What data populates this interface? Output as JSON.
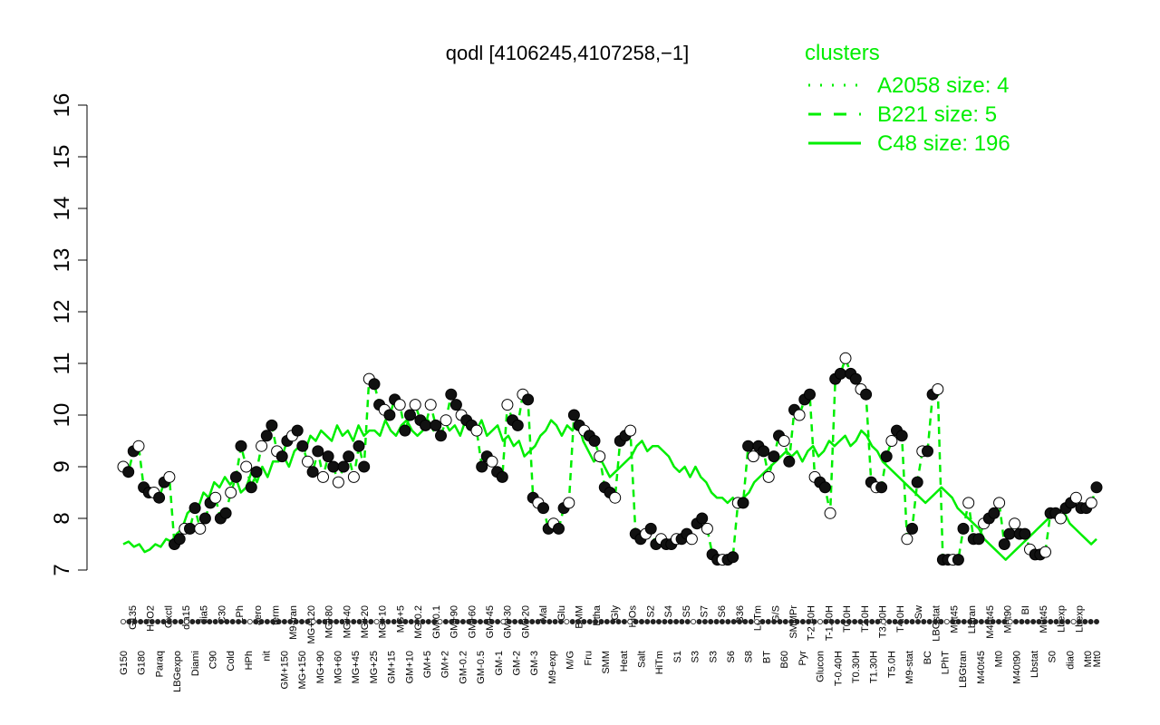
{
  "chart_data": {
    "type": "line",
    "title": "qodl [4106245,4107258,−1]",
    "xlabel": "",
    "ylabel": "",
    "ylim": [
      7,
      16
    ],
    "yticks": [
      7,
      8,
      9,
      10,
      11,
      12,
      13,
      14,
      15,
      16
    ],
    "grid": false,
    "legend": {
      "title": "clusters",
      "placement": "top-right",
      "color": "#00ee00",
      "entries": [
        {
          "label": "A2058 size: 4",
          "style": "dotted"
        },
        {
          "label": "B221 size: 5",
          "style": "dashed"
        },
        {
          "label": "C48 size: 196",
          "style": "solid"
        }
      ]
    },
    "xtick_labels_bottom": [
      "G150",
      "G180",
      "Paraq",
      "LBGexpo",
      "Diami",
      "C90",
      "Cold",
      "HPh",
      "nit",
      "GM+150",
      "MG+150",
      "MG+90",
      "MG+60",
      "MG+45",
      "MG+25",
      "GM+15",
      "GM+10",
      "GM+5",
      "GM+2",
      "GM-0.2",
      "GM-0.5",
      "GM-1",
      "GM-2",
      "GM-3",
      "M9-exp",
      "M/G",
      "Fru",
      "SMM",
      "Heat",
      "Salt",
      "HiTm",
      "S1",
      "S3",
      "S3",
      "S6",
      "S8",
      "BT",
      "B60",
      "Pyr",
      "Glucon",
      "T-0.40H",
      "T0.30H",
      "T1.30H",
      "T5.0H",
      "M9-stat",
      "BC",
      "LPhT",
      "LBGtran",
      "M40t45",
      "Mt0",
      "M40t90",
      "Lbstat",
      "S0",
      "dia0",
      "Mt0",
      "Mt0"
    ],
    "xtick_labels_top": [
      "G135",
      "H2O2",
      "Oxctl",
      "dia15",
      "dia5",
      "C30",
      "LPh",
      "aero",
      "ferm",
      "M9-tran",
      "MG+120",
      "MG+80",
      "MG+40",
      "MG+20",
      "MG+10",
      "MG+5",
      "MG-0.2",
      "GM-0.1",
      "GM+90",
      "GM+60",
      "GM+45",
      "GM+30",
      "GM+20",
      "Mal",
      "Glu",
      "BMM",
      "Etha",
      "Gly",
      "HiOs",
      "S2",
      "S4",
      "S5",
      "S7",
      "S6",
      "B36",
      "LoTm",
      "G/S",
      "SMMPr",
      "T-2.40H",
      "T-1.40H",
      "T0.0H",
      "T2.0H",
      "T3.30H",
      "T4.0H",
      "Sw",
      "LBGstat",
      "M0t45",
      "Lbtran",
      "M40t45",
      "M0t90",
      "BI",
      "M0t45",
      "Lbexp",
      "Lbexp"
    ],
    "series": [
      {
        "name": "C48 size: 196",
        "style": "solid",
        "values": [
          7.5,
          7.55,
          7.45,
          7.5,
          7.35,
          7.4,
          7.5,
          7.45,
          7.6,
          7.55,
          7.7,
          7.8,
          8.1,
          8.2,
          8.2,
          8.5,
          8.4,
          8.7,
          8.6,
          8.8,
          8.65,
          8.8,
          8.5,
          8.6,
          8.9,
          8.7,
          9.0,
          8.8,
          9.1,
          9.1,
          9.2,
          9.0,
          9.3,
          9.4,
          9.3,
          9.6,
          9.5,
          9.7,
          9.6,
          9.5,
          9.8,
          9.6,
          9.7,
          9.5,
          9.8,
          9.6,
          9.7,
          9.7,
          9.6,
          9.9,
          9.7,
          9.6,
          9.8,
          9.9,
          9.7,
          9.6,
          9.7,
          9.9,
          9.7,
          9.8,
          9.9,
          9.7,
          9.8,
          9.6,
          9.9,
          9.8,
          9.7,
          9.9,
          9.6,
          9.7,
          9.8,
          9.5,
          9.6,
          9.4,
          9.5,
          9.2,
          9.3,
          9.4,
          9.6,
          9.7,
          9.9,
          9.8,
          9.6,
          9.8,
          9.7,
          9.9,
          9.5,
          9.3,
          9.1,
          9.2,
          9.0,
          8.8,
          8.9,
          9.0,
          9.1,
          9.2,
          9.4,
          9.5,
          9.3,
          9.4,
          9.4,
          9.3,
          9.2,
          9.0,
          8.9,
          9.0,
          8.8,
          9.0,
          8.8,
          8.7,
          8.5,
          8.4,
          8.4,
          8.3,
          8.4,
          8.2,
          8.4,
          8.5,
          8.7,
          8.8,
          8.9,
          9.0,
          9.1,
          9.2,
          9.3,
          9.2,
          9.3,
          9.1,
          9.3,
          9.4,
          9.2,
          9.3,
          9.5,
          9.4,
          9.5,
          9.6,
          9.4,
          9.5,
          9.7,
          9.6,
          9.4,
          9.3,
          9.1,
          9.0,
          8.9,
          8.8,
          8.7,
          8.6,
          8.5,
          8.4,
          8.3,
          8.4,
          8.5,
          8.6,
          8.5,
          8.4,
          8.2,
          8.1,
          8.0,
          7.9,
          7.8,
          7.6,
          7.5,
          7.4,
          7.3,
          7.2,
          7.3,
          7.4,
          7.5,
          7.6,
          7.7,
          7.8,
          7.9,
          8.0,
          8.1,
          8.0,
          8.1,
          7.9,
          7.8,
          7.7,
          7.6,
          7.5,
          7.6
        ]
      },
      {
        "name": "B221 size: 5",
        "style": "dashed",
        "values": [
          9.0,
          8.9,
          9.3,
          9.4,
          8.6,
          8.5,
          8.5,
          8.4,
          8.7,
          8.8,
          7.5,
          7.6,
          7.8,
          7.8,
          8.2,
          7.8,
          8.0,
          8.3,
          8.4,
          8.0,
          8.1,
          8.5,
          8.8,
          9.4,
          9.0,
          8.6,
          8.9,
          9.4,
          9.6,
          9.8,
          9.3,
          9.2,
          9.5,
          9.6,
          9.7,
          9.4,
          9.1,
          8.9,
          9.3,
          8.8,
          9.2,
          9.0,
          8.7,
          9.0,
          9.2,
          8.8,
          9.4,
          9.0,
          10.7,
          10.6,
          10.2,
          10.1,
          10.0,
          10.3,
          10.2,
          9.7,
          10.0,
          10.2,
          9.9,
          9.8,
          10.2,
          9.8,
          9.6,
          9.9,
          10.4,
          10.2,
          10.0,
          9.9,
          9.8,
          9.7,
          9.0,
          9.2,
          9.1,
          8.9,
          8.8,
          10.2,
          9.9,
          9.8,
          10.4,
          10.3,
          8.4,
          8.3,
          8.2,
          7.8,
          7.9,
          7.8,
          8.2,
          8.3,
          10.0,
          9.8,
          9.7,
          9.6,
          9.5,
          9.2,
          8.6,
          8.5,
          8.4,
          9.5,
          9.6,
          9.7,
          7.7,
          7.6,
          7.7,
          7.8,
          7.5,
          7.6,
          7.5,
          7.5,
          7.6,
          7.6,
          7.7,
          7.6,
          7.9,
          8.0,
          7.8,
          7.3,
          7.2,
          7.2,
          7.2,
          7.25,
          8.3,
          8.3,
          9.4,
          9.2,
          9.4,
          9.3,
          8.8,
          9.2,
          9.6,
          9.5,
          9.1,
          10.1,
          10.0,
          10.3,
          10.4,
          8.8,
          8.7,
          8.6,
          8.1,
          10.7,
          10.8,
          11.1,
          10.8,
          10.7,
          10.5,
          10.4,
          8.7,
          8.6,
          8.6,
          9.2,
          9.5,
          9.7,
          9.6,
          7.6,
          7.8,
          8.7,
          9.3,
          9.3,
          10.4,
          10.5,
          7.2,
          7.2,
          7.2,
          7.2,
          7.8,
          8.3,
          7.6,
          7.6,
          7.9,
          8.0,
          8.1,
          8.3,
          7.5,
          7.7,
          7.9,
          7.7,
          7.7,
          7.4,
          7.3,
          7.3,
          7.35,
          8.1,
          8.1,
          8.0,
          8.2,
          8.3,
          8.4,
          8.2,
          8.2,
          8.3,
          8.6
        ]
      }
    ],
    "points_series": "B221 size: 5"
  }
}
